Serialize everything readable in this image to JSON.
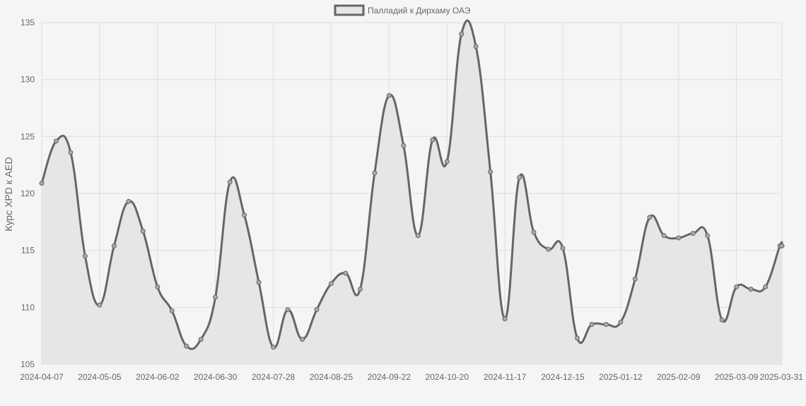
{
  "chart_data": {
    "type": "area",
    "legend": {
      "label": "Палладий к Дирхаму ОАЭ",
      "position": "top-center"
    },
    "ylabel": "Курс XPD к AED",
    "xlabel": "",
    "ylim": [
      105,
      135
    ],
    "yticks": [
      105,
      110,
      115,
      120,
      125,
      130,
      135
    ],
    "grid": true,
    "x_tick_labels": [
      "2024-04-07",
      "2024-05-05",
      "2024-06-02",
      "2024-06-30",
      "2024-07-28",
      "2024-08-25",
      "2024-09-22",
      "2024-10-20",
      "2024-11-17",
      "2024-12-15",
      "2025-01-12",
      "2025-02-09",
      "2025-03-09",
      "2025-03-31"
    ],
    "series": [
      {
        "name": "Палладий к Дирхаму ОАЭ",
        "x": [
          "2024-04-07",
          "2024-04-14",
          "2024-04-21",
          "2024-04-28",
          "2024-05-05",
          "2024-05-12",
          "2024-05-19",
          "2024-05-26",
          "2024-06-02",
          "2024-06-09",
          "2024-06-16",
          "2024-06-23",
          "2024-06-30",
          "2024-07-07",
          "2024-07-14",
          "2024-07-21",
          "2024-07-28",
          "2024-08-04",
          "2024-08-11",
          "2024-08-18",
          "2024-08-25",
          "2024-09-01",
          "2024-09-08",
          "2024-09-15",
          "2024-09-22",
          "2024-09-29",
          "2024-10-06",
          "2024-10-13",
          "2024-10-20",
          "2024-10-27",
          "2024-11-03",
          "2024-11-10",
          "2024-11-17",
          "2024-11-24",
          "2024-12-01",
          "2024-12-08",
          "2024-12-15",
          "2024-12-22",
          "2024-12-29",
          "2025-01-05",
          "2025-01-12",
          "2025-01-19",
          "2025-01-26",
          "2025-02-02",
          "2025-02-09",
          "2025-02-16",
          "2025-02-23",
          "2025-03-02",
          "2025-03-09",
          "2025-03-16",
          "2025-03-23",
          "2025-03-30",
          "2025-03-31"
        ],
        "values": [
          120.9,
          124.6,
          123.6,
          114.5,
          110.2,
          115.4,
          119.3,
          116.7,
          111.8,
          109.7,
          106.6,
          107.2,
          110.9,
          121.0,
          118.1,
          112.2,
          106.5,
          109.8,
          107.2,
          109.8,
          112.1,
          113.0,
          111.6,
          121.8,
          128.6,
          124.2,
          116.3,
          124.7,
          122.8,
          134.0,
          132.9,
          121.9,
          109.0,
          121.4,
          116.6,
          115.1,
          115.2,
          107.3,
          108.5,
          108.5,
          108.7,
          112.5,
          117.9,
          116.3,
          116.1,
          116.5,
          116.3,
          108.9,
          111.8,
          111.6,
          111.8,
          115.4,
          115.4
        ],
        "color": "#666666",
        "fill": "#e6e6e8"
      }
    ]
  }
}
